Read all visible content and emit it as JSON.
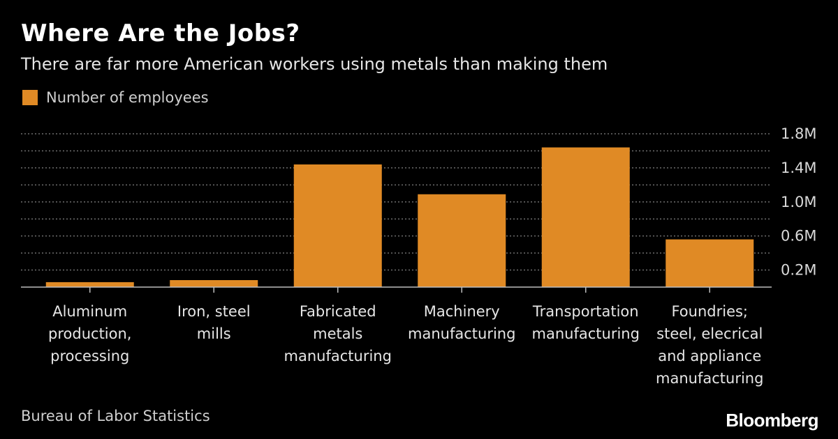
{
  "chart_data": {
    "type": "bar",
    "title": "Where Are the Jobs?",
    "subtitle": "There are far more American workers using metals than making them",
    "series": [
      {
        "name": "Number of employees",
        "color": "#e08a25",
        "values": [
          58000,
          82000,
          1440000,
          1090000,
          1640000,
          560000
        ]
      }
    ],
    "categories": [
      "Aluminum production, processing",
      "Iron, steel mills",
      "Fabricated metals manufacturing",
      "Machinery manufacturing",
      "Transportation manufacturing",
      "Foundries; steel, elecrical and appliance manufacturing"
    ],
    "category_lines": [
      [
        "Aluminum",
        "production,",
        "processing"
      ],
      [
        "Iron, steel",
        "mills"
      ],
      [
        "Fabricated",
        "metals",
        "manufacturing"
      ],
      [
        "Machinery",
        "manufacturing"
      ],
      [
        "Transportation",
        "manufacturing"
      ],
      [
        "Foundries;",
        "steel, elecrical",
        "and appliance",
        "manufacturing"
      ]
    ],
    "ylim": [
      0,
      1800000
    ],
    "yticks": [
      {
        "value": 200000,
        "label": "0.2M"
      },
      {
        "value": 600000,
        "label": "0.6M"
      },
      {
        "value": 1000000,
        "label": "1.0M"
      },
      {
        "value": 1400000,
        "label": "1.4M"
      },
      {
        "value": 1800000,
        "label": "1.8M"
      }
    ],
    "gridlines": [
      200000,
      400000,
      600000,
      800000,
      1000000,
      1200000,
      1400000,
      1600000,
      1800000
    ],
    "grid": true,
    "legend_position": "top-left",
    "xlabel": "",
    "ylabel": ""
  },
  "source": "Bureau of Labor Statistics",
  "brand": "Bloomberg",
  "colors": {
    "background": "#000000",
    "bar": "#e08a25",
    "grid": "#6e6e6e",
    "text": "#ffffff"
  }
}
